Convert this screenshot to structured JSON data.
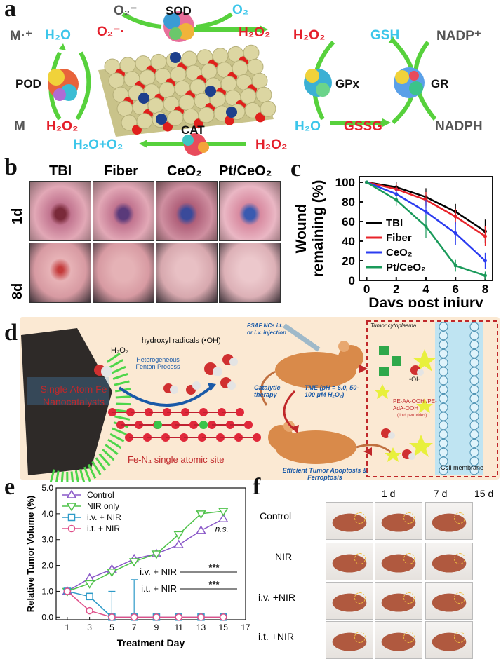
{
  "panel_a": {
    "letter": "a",
    "sod": {
      "label": "SOD",
      "in_left": "O₂⁻",
      "in_left2": "O₂⁻·",
      "out_right": "O₂",
      "out_right2": "H₂O₂"
    },
    "pod": {
      "label": "POD",
      "m_plus": "M·⁺",
      "h2o": "H₂O",
      "m": "M",
      "h2o2": "H₂O₂"
    },
    "cat": {
      "label": "CAT",
      "left": "H₂O+O₂",
      "right": "H₂O₂"
    },
    "gpx": {
      "label": "GPx",
      "h2o2": "H₂O₂",
      "h2o": "H₂O",
      "gssg": "GSSG",
      "gsh": "GSH"
    },
    "gr": {
      "label": "GR",
      "nadp": "NADP⁺",
      "nadph": "NADPH"
    }
  },
  "panel_b": {
    "letter": "b",
    "columns": [
      "TBI",
      "Fiber",
      "CeO₂",
      "Pt/CeO₂"
    ],
    "rows": [
      "1d",
      "8d"
    ]
  },
  "panel_c": {
    "letter": "c"
  },
  "panel_d": {
    "letter": "d",
    "single_atom": "Single Atom Fe Nanocatalysts",
    "h2o2": "H₂O₂",
    "hydroxyl": "hydroxyl radicals (•OH)",
    "fenton": "Heterogeneous Fenton Process",
    "site": "Fe-N₄ single atomic site",
    "psaf": "PSAF NCs i.t. or i.v. injection",
    "catalytic": "Catalytic therapy",
    "tme": "TME (pH = 6.0, 50-100 μM H₂O₂)",
    "efficient": "Efficient Tumor Apoptosis & Ferroptosis",
    "tumor_cyto": "Tumor cytoplasma",
    "oh": "•OH",
    "lipid": "PE-AA-OOH /PE-AdA-OOH",
    "lipid_note": "(lipid peroxides)",
    "membrane": "Cell membrane"
  },
  "panel_e": {
    "letter": "e"
  },
  "panel_f": {
    "letter": "f",
    "days": [
      "1 d",
      "7 d",
      "15 d"
    ],
    "rows": [
      "Control",
      "NIR",
      "i.v. +NIR",
      "i.t. +NIR"
    ]
  },
  "chart_data": [
    {
      "type": "line",
      "title": "",
      "xlabel": "Days post injury",
      "ylabel": "Wound remaining (%)",
      "xlim": [
        -0.5,
        8.5
      ],
      "ylim": [
        0,
        100
      ],
      "xticks": [
        0,
        2,
        4,
        6,
        8
      ],
      "yticks": [
        0,
        20,
        40,
        60,
        80,
        100
      ],
      "legend_position": "right",
      "series": [
        {
          "name": "TBI",
          "color": "#000000",
          "x": [
            0,
            2,
            4,
            6,
            8
          ],
          "y": [
            100,
            95,
            85,
            70,
            50
          ],
          "err": [
            0,
            5,
            9,
            8,
            12
          ]
        },
        {
          "name": "Fiber",
          "color": "#e8232a",
          "x": [
            0,
            2,
            4,
            6,
            8
          ],
          "y": [
            100,
            93,
            82,
            65,
            45
          ],
          "err": [
            0,
            5,
            8,
            8,
            10
          ]
        },
        {
          "name": "CeO₂",
          "color": "#2b3cf0",
          "x": [
            0,
            2,
            4,
            6,
            8
          ],
          "y": [
            100,
            88,
            70,
            48,
            20
          ],
          "err": [
            0,
            6,
            12,
            12,
            8
          ]
        },
        {
          "name": "Pt/CeO₂",
          "color": "#1a9a5a",
          "x": [
            0,
            2,
            4,
            6,
            8
          ],
          "y": [
            100,
            82,
            55,
            15,
            5
          ],
          "err": [
            0,
            6,
            12,
            6,
            4
          ]
        }
      ]
    },
    {
      "type": "line",
      "title": "",
      "xlabel": "Treatment Day",
      "ylabel": "Relative Tumor Volume (%)",
      "xlim": [
        0,
        17
      ],
      "ylim": [
        -0.1,
        5.0
      ],
      "xticks": [
        1,
        3,
        5,
        7,
        9,
        11,
        13,
        15,
        17
      ],
      "yticks": [
        0.0,
        0.5,
        1.0,
        1.5,
        2.0,
        2.5,
        3.0,
        3.5,
        4.0,
        4.5,
        5.0
      ],
      "legend_position": "top-left",
      "annotations": [
        {
          "text": "n.s.",
          "x": 15,
          "y": 3.3
        },
        {
          "text": "i.v. + NIR",
          "stars": "***"
        },
        {
          "text": "i.t. + NIR",
          "stars": "***"
        }
      ],
      "series": [
        {
          "name": "Control",
          "color": "#8a58c8",
          "marker": "triangle-up",
          "x": [
            1,
            3,
            5,
            7,
            9,
            11,
            13,
            15
          ],
          "y": [
            1.0,
            1.5,
            1.85,
            2.25,
            2.45,
            2.8,
            3.35,
            3.8
          ]
        },
        {
          "name": "NIR only",
          "color": "#4fc24a",
          "marker": "triangle-down",
          "x": [
            1,
            3,
            5,
            7,
            9,
            11,
            13,
            15
          ],
          "y": [
            1.0,
            1.3,
            1.75,
            2.15,
            2.45,
            3.2,
            4.0,
            4.1
          ]
        },
        {
          "name": "i.v. + NIR",
          "color": "#2d9ac8",
          "marker": "square",
          "x": [
            1,
            3,
            5,
            7,
            9,
            11,
            13,
            15
          ],
          "y": [
            1.0,
            0.8,
            0.0,
            0.0,
            0.0,
            0.0,
            0.0,
            0.0
          ],
          "err_up": [
            0,
            0,
            1.0,
            1.45,
            0,
            0,
            0,
            0
          ]
        },
        {
          "name": "i.t. + NIR",
          "color": "#e0508a",
          "marker": "circle",
          "x": [
            1,
            3,
            5,
            7,
            9,
            11,
            13,
            15
          ],
          "y": [
            1.0,
            0.25,
            0.0,
            0.0,
            0.0,
            0.0,
            0.0,
            0.0
          ]
        }
      ]
    }
  ]
}
